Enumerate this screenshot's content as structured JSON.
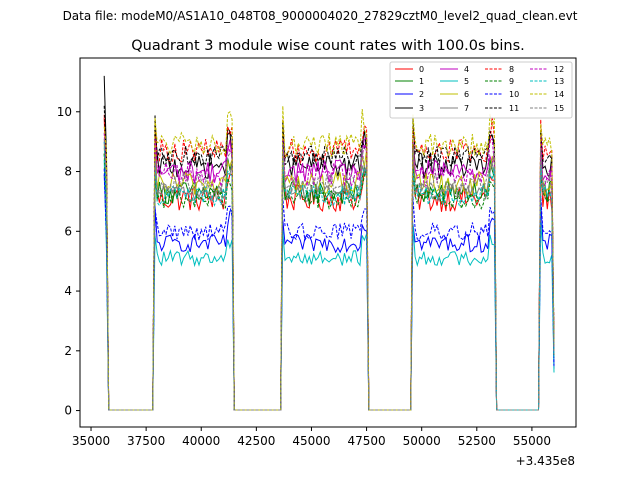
{
  "chart_data": {
    "type": "line",
    "suptitle": "Data file: modeM0/AS1A10_048T08_9000004020_27829cztM0_level2_quad_clean.evt",
    "title": "Quadrant 3 module wise count rates with 100.0s bins.",
    "xlabel": "",
    "ylabel": "",
    "x_offset_label": "+3.435e8",
    "xlim": [
      34500,
      57000
    ],
    "ylim": [
      -0.55,
      11.8
    ],
    "xticks": [
      35000,
      37500,
      40000,
      42500,
      45000,
      47500,
      50000,
      52500,
      55000
    ],
    "xtick_labels": [
      "35000",
      "37500",
      "40000",
      "42500",
      "45000",
      "47500",
      "50000",
      "52500",
      "55000"
    ],
    "yticks": [
      0,
      2,
      4,
      6,
      8,
      10
    ],
    "ytick_labels": [
      "0",
      "2",
      "4",
      "6",
      "8",
      "10"
    ],
    "legend_position": "upper right",
    "active_intervals": [
      [
        35600,
        35700
      ],
      [
        37900,
        41400
      ],
      [
        43700,
        47500
      ],
      [
        49600,
        53300
      ],
      [
        55400,
        56000
      ]
    ],
    "series": [
      {
        "name": "0",
        "color": "#ff0000",
        "style": "solid",
        "level": 7.1,
        "noise": 0.45,
        "start_peak": 9.8
      },
      {
        "name": "1",
        "color": "#008000",
        "style": "solid",
        "level": 7.3,
        "noise": 0.4,
        "start_peak": 8.6
      },
      {
        "name": "2",
        "color": "#0000ff",
        "style": "solid",
        "level": 5.6,
        "noise": 0.3,
        "start_peak": 7.9
      },
      {
        "name": "3",
        "color": "#000000",
        "style": "solid",
        "level": 8.2,
        "noise": 0.45,
        "start_peak": 11.2
      },
      {
        "name": "4",
        "color": "#bf00bf",
        "style": "solid",
        "level": 8.0,
        "noise": 0.4,
        "start_peak": 9.0
      },
      {
        "name": "5",
        "color": "#00bfbf",
        "style": "solid",
        "level": 5.1,
        "noise": 0.25,
        "start_peak": 8.4
      },
      {
        "name": "6",
        "color": "#bfbf00",
        "style": "solid",
        "level": 7.6,
        "noise": 0.4,
        "start_peak": 8.9
      },
      {
        "name": "7",
        "color": "#808080",
        "style": "solid",
        "level": 7.3,
        "noise": 0.3,
        "start_peak": 8.8
      },
      {
        "name": "8",
        "color": "#ff0000",
        "style": "dashed",
        "level": 8.7,
        "noise": 0.4,
        "start_peak": 9.9
      },
      {
        "name": "9",
        "color": "#008000",
        "style": "dashed",
        "level": 7.1,
        "noise": 0.35,
        "start_peak": 8.6
      },
      {
        "name": "10",
        "color": "#0000ff",
        "style": "dashed",
        "level": 6.0,
        "noise": 0.3,
        "start_peak": 8.1
      },
      {
        "name": "11",
        "color": "#000000",
        "style": "dashed",
        "level": 8.5,
        "noise": 0.35,
        "start_peak": 10.2
      },
      {
        "name": "12",
        "color": "#bf00bf",
        "style": "dashed",
        "level": 7.9,
        "noise": 0.4,
        "start_peak": 9.3
      },
      {
        "name": "13",
        "color": "#00bfbf",
        "style": "dashed",
        "level": 7.2,
        "noise": 0.35,
        "start_peak": 9.0
      },
      {
        "name": "14",
        "color": "#bfbf00",
        "style": "dashed",
        "level": 8.9,
        "noise": 0.4,
        "start_peak": 9.5
      },
      {
        "name": "15",
        "color": "#808080",
        "style": "dashed",
        "level": 7.6,
        "noise": 0.35,
        "start_peak": 9.1
      }
    ]
  }
}
